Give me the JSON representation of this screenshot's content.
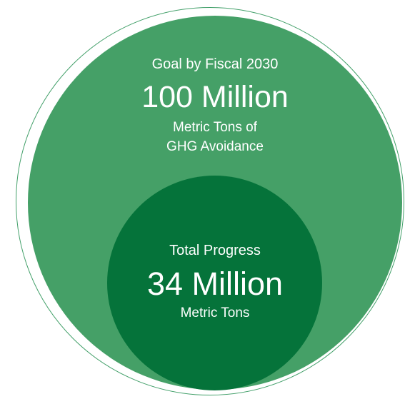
{
  "goal": {
    "label": "Goal by Fiscal 2030",
    "value": "100 Million",
    "unit_line1": "Metric Tons of",
    "unit_line2": "GHG Avoidance",
    "amount_millions": 100
  },
  "progress": {
    "label": "Total Progress",
    "value": "34 Million",
    "unit": "Metric Tons",
    "amount_millions": 34
  },
  "colors": {
    "goal_fill": "#45a067",
    "progress_fill": "#05733a",
    "ring": "#43a06a",
    "text": "#ffffff"
  }
}
